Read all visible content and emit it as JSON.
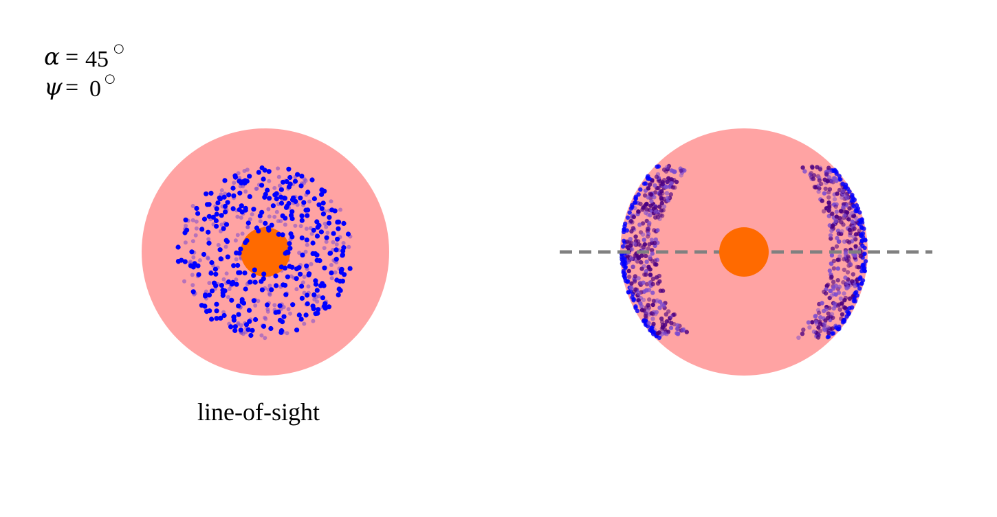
{
  "annotations": {
    "alpha_symbol": "α",
    "alpha_value": "45",
    "psi_symbol": "ψ",
    "psi_value": "0",
    "equals": "=",
    "degree": "○"
  },
  "caption": "line-of-sight",
  "colors": {
    "background": "#ffffff",
    "halo": "#ffa3a3",
    "core": "#ff6a00",
    "front_points": "#0000ff",
    "back_points": "#7a4ad0",
    "edge_points": "#4b0082",
    "line_of_sight": "#808080"
  },
  "panels": [
    {
      "name": "face-on-view",
      "description_visible": false
    },
    {
      "name": "edge-on-view",
      "description_visible": false
    }
  ]
}
